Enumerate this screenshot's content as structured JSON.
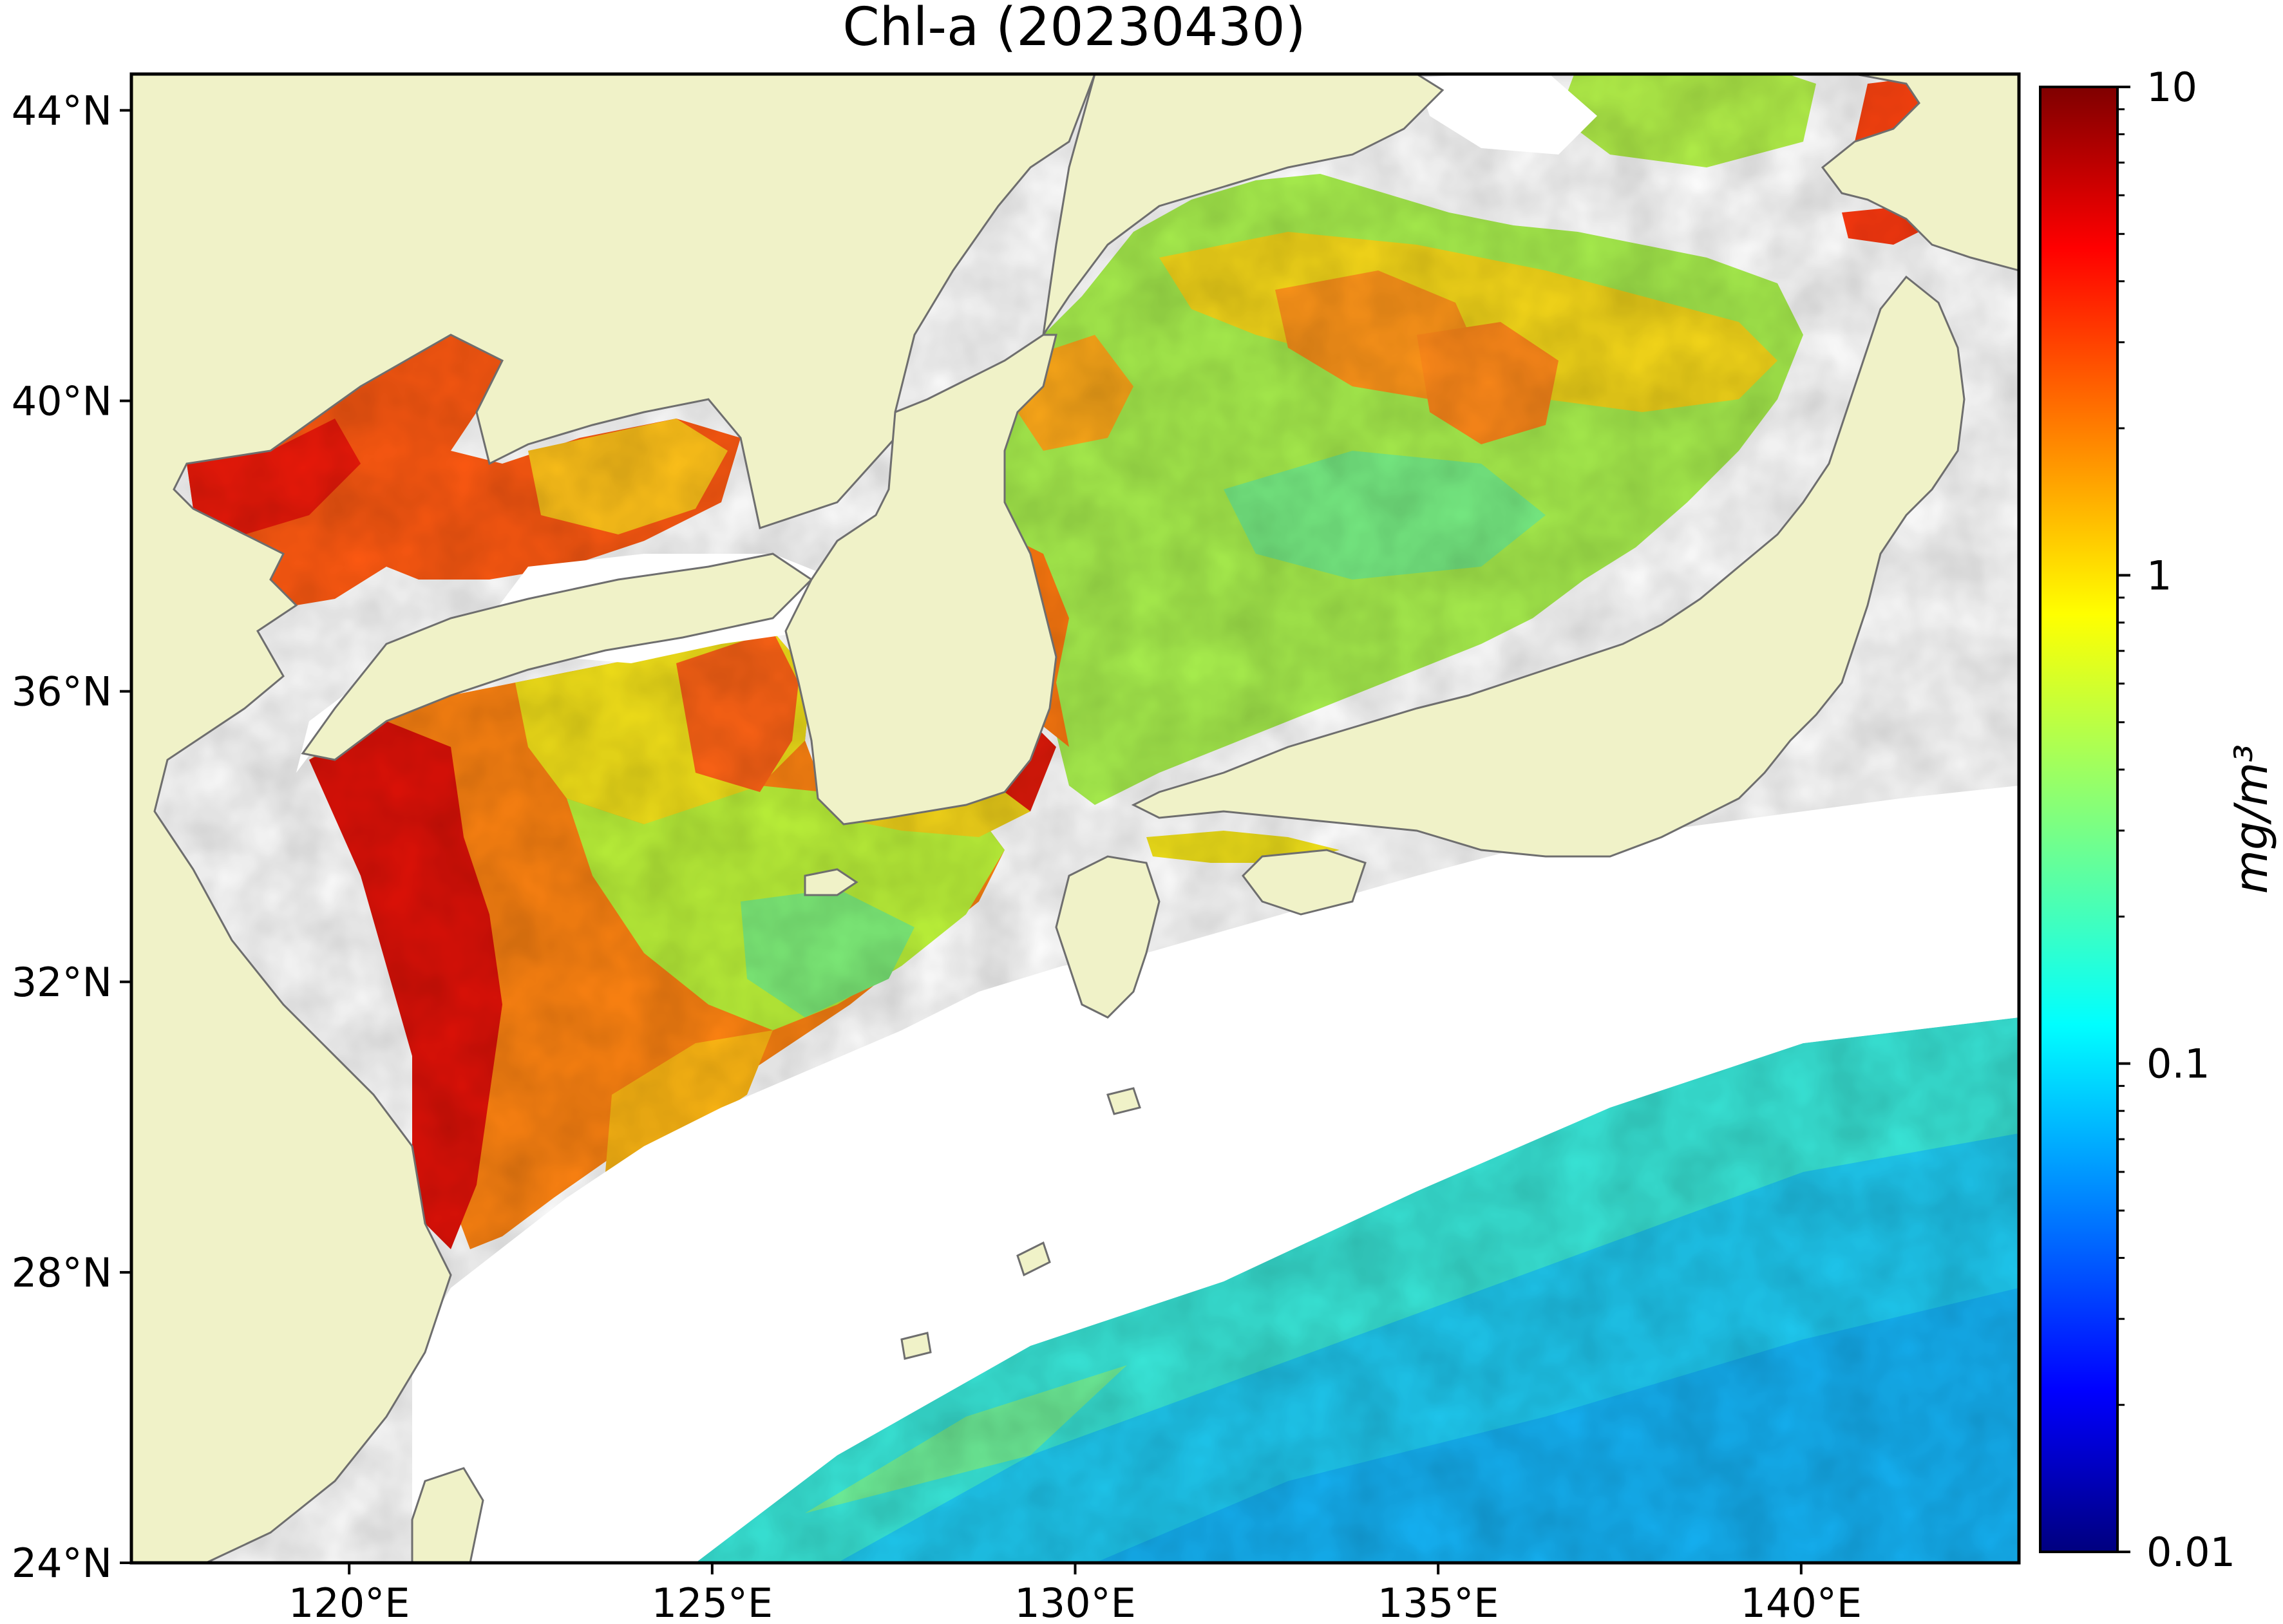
{
  "map": {
    "title": "Chl-a (20230430)",
    "type": "satellite-ocean-color-map",
    "lon_range": [
      117,
      143
    ],
    "lat_range": [
      24,
      44.5
    ],
    "colors": {
      "land": "#f0f2c8",
      "coastline": "#6e6e6e",
      "no_data": "#ffffff",
      "frame": "#000000"
    },
    "x_ticks": [
      {
        "value": 120,
        "label": "120°E"
      },
      {
        "value": 125,
        "label": "125°E"
      },
      {
        "value": 130,
        "label": "130°E"
      },
      {
        "value": 135,
        "label": "135°E"
      },
      {
        "value": 140,
        "label": "140°E"
      }
    ],
    "y_ticks": [
      {
        "value": 24,
        "label": "24°N"
      },
      {
        "value": 28,
        "label": "28°N"
      },
      {
        "value": 32,
        "label": "32°N"
      },
      {
        "value": 36,
        "label": "36°N"
      },
      {
        "value": 40,
        "label": "40°N"
      },
      {
        "value": 44,
        "label": "44°N"
      }
    ]
  },
  "colorbar": {
    "label": "mg/m³",
    "scale": "log",
    "range": [
      0.01,
      10
    ],
    "colormap": "jet",
    "ticks": [
      {
        "value": 10,
        "label": "10"
      },
      {
        "value": 1,
        "label": "1"
      },
      {
        "value": 0.1,
        "label": "0.1"
      },
      {
        "value": 0.01,
        "label": "0.01"
      }
    ]
  }
}
